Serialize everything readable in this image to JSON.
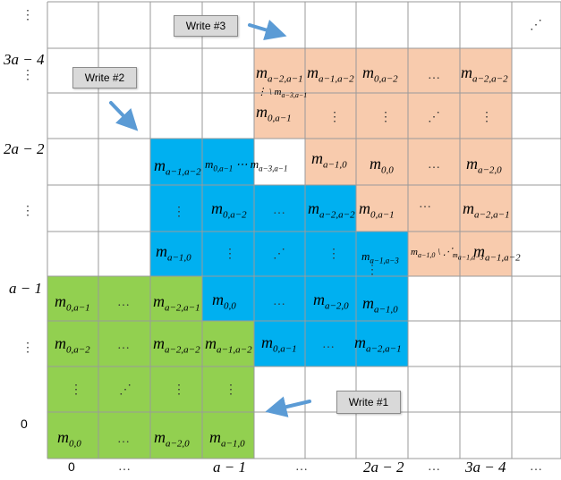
{
  "colors": {
    "green": "#92d050",
    "blue": "#00b0f0",
    "peach": "#f8cbad",
    "grid": "#9a9a9a",
    "arrow": "#5b9bd5"
  },
  "write_boxes": [
    "Write #1",
    "Write #2",
    "Write #3"
  ],
  "x_axis": [
    "0",
    "…",
    "a − 1",
    "…",
    "2a − 2",
    "…",
    "3a − 4",
    "…"
  ],
  "y_axis": [
    "⋮",
    "3a − 4",
    "⋮",
    "2a − 2",
    "⋮",
    "a − 1",
    "⋮",
    "0"
  ],
  "corner": "⋰"
}
